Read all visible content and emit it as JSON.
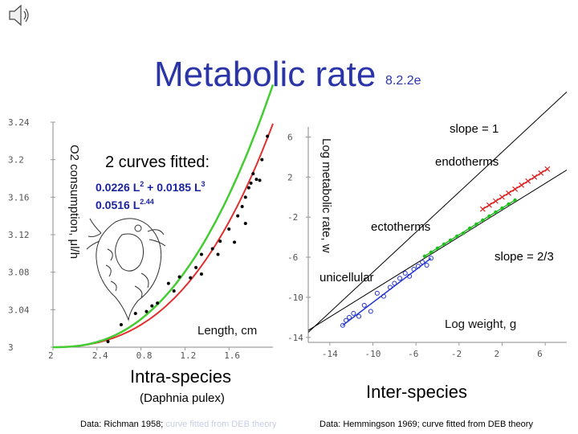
{
  "page": {
    "title": "Metabolic rate",
    "title_sub": "8.2.2e",
    "speaker_icon": "speaker-icon"
  },
  "left": {
    "fit_heading": "2 curves fitted:",
    "fit1_base": "0.0226 L",
    "fit1_exp1": "2",
    "fit1_mid": " + 0.0185 L",
    "fit1_exp2": "3",
    "fit2_base": "0.0516 L",
    "fit2_exp": "2.44",
    "caption": "Intra-species",
    "subcaption": "(Daphnia pulex)",
    "source_prefix": "Data: Richman 1958; ",
    "source_suffix": "curve fitted from DEB theory"
  },
  "right": {
    "caption": "Inter-species",
    "source": "Data: Hemmingson 1969; curve fitted from DEB theory"
  },
  "colors": {
    "title": "#2b35a8",
    "fit1": "#e03030",
    "fit2": "#44cc33",
    "ectotherm": "#1fbf1f",
    "endotherm": "#dd2222",
    "unicellular": "#2233cc",
    "fit_text": "#1a22a0",
    "source_faded": "#c9cce6"
  },
  "chart_data": [
    {
      "type": "scatter",
      "title": "",
      "xlabel": "Length, cm",
      "ylabel": "O2 consumption, μl/h",
      "x_ticks": [
        "2",
        "2.4",
        "0.8",
        "1.2",
        "1.6"
      ],
      "y_ticks": [
        "3.24",
        "3.2",
        "3.16",
        "3.12",
        "3.08",
        "3.04",
        "3"
      ],
      "xlim": [
        0,
        2
      ],
      "ylim": [
        0,
        0.24
      ],
      "grid": false,
      "points": {
        "x": [
          0.5,
          0.62,
          0.75,
          0.85,
          0.9,
          0.95,
          1.05,
          1.1,
          1.15,
          1.25,
          1.3,
          1.35,
          1.35,
          1.45,
          1.5,
          1.52,
          1.6,
          1.65,
          1.68,
          1.72,
          1.75,
          1.75,
          1.78,
          1.8,
          1.82,
          1.85,
          1.88,
          1.9,
          1.95
        ],
        "y": [
          0.006,
          0.024,
          0.036,
          0.038,
          0.044,
          0.047,
          0.068,
          0.06,
          0.075,
          0.074,
          0.085,
          0.078,
          0.099,
          0.105,
          0.099,
          0.113,
          0.126,
          0.112,
          0.14,
          0.15,
          0.132,
          0.16,
          0.17,
          0.175,
          0.185,
          0.179,
          0.178,
          0.2,
          0.225
        ]
      },
      "series": [
        {
          "name": "0.0226 L2 + 0.0185 L3",
          "coef_a": 0.0226,
          "pow_a": 2,
          "coef_b": 0.0185,
          "pow_b": 3
        },
        {
          "name": "0.0516 L2.44",
          "coef": 0.0516,
          "pow": 2.44
        }
      ]
    },
    {
      "type": "scatter",
      "title": "",
      "xlabel": "Log weight, g",
      "ylabel": "Log metabolic rate, w",
      "x_ticks": [
        "-14",
        "-10",
        "-6",
        "-2",
        "2",
        "6"
      ],
      "y_ticks": [
        "6",
        "2",
        "-2",
        "-6",
        "-10",
        "-14"
      ],
      "xlim": [
        -16,
        8
      ],
      "ylim": [
        -14.5,
        7
      ],
      "grid": false,
      "annotations": [
        "slope = 1",
        "slope = 2/3",
        "endotherms",
        "ectotherms",
        "unicellular"
      ],
      "series": [
        {
          "name": "unicellular",
          "x": [
            -12.8,
            -12.5,
            -12.2,
            -11.8,
            -11.3,
            -10.8,
            -10.2,
            -9.6,
            -9.0,
            -8.4,
            -8.0,
            -7.5,
            -7.0,
            -6.6,
            -6.2,
            -5.8,
            -5.4,
            -5.0,
            -4.6
          ],
          "y": [
            -12.8,
            -12.3,
            -12.0,
            -11.6,
            -11.9,
            -10.8,
            -11.4,
            -9.6,
            -9.9,
            -9.0,
            -8.6,
            -8.1,
            -7.6,
            -7.9,
            -7.2,
            -6.9,
            -6.5,
            -6.8,
            -6.1
          ]
        },
        {
          "name": "ectotherms",
          "x": [
            -5.2,
            -4.6,
            -4.0,
            -3.4,
            -2.8,
            -2.2,
            -1.6,
            -1.0,
            -0.4,
            0.2,
            0.8,
            1.4,
            2.0,
            2.6,
            3.2
          ],
          "y": [
            -5.9,
            -5.5,
            -5.1,
            -4.7,
            -4.3,
            -3.9,
            -3.6,
            -3.1,
            -2.7,
            -2.3,
            -1.9,
            -1.5,
            -1.1,
            -0.7,
            -0.3
          ]
        },
        {
          "name": "endotherms",
          "x": [
            0.2,
            0.8,
            1.4,
            2.0,
            2.6,
            3.2,
            3.8,
            4.4,
            5.0,
            5.6,
            6.2
          ],
          "y": [
            -1.2,
            -0.8,
            -0.4,
            0.0,
            0.4,
            0.8,
            1.2,
            1.6,
            2.0,
            2.4,
            2.8
          ]
        }
      ],
      "reference_lines": [
        {
          "name": "slope = 1",
          "x": [
            -16,
            8
          ],
          "y": [
            -13.5,
            10.5
          ]
        },
        {
          "name": "slope = 2/3",
          "x": [
            -16,
            8
          ],
          "y": [
            -13.3,
            2.7
          ]
        }
      ]
    }
  ]
}
